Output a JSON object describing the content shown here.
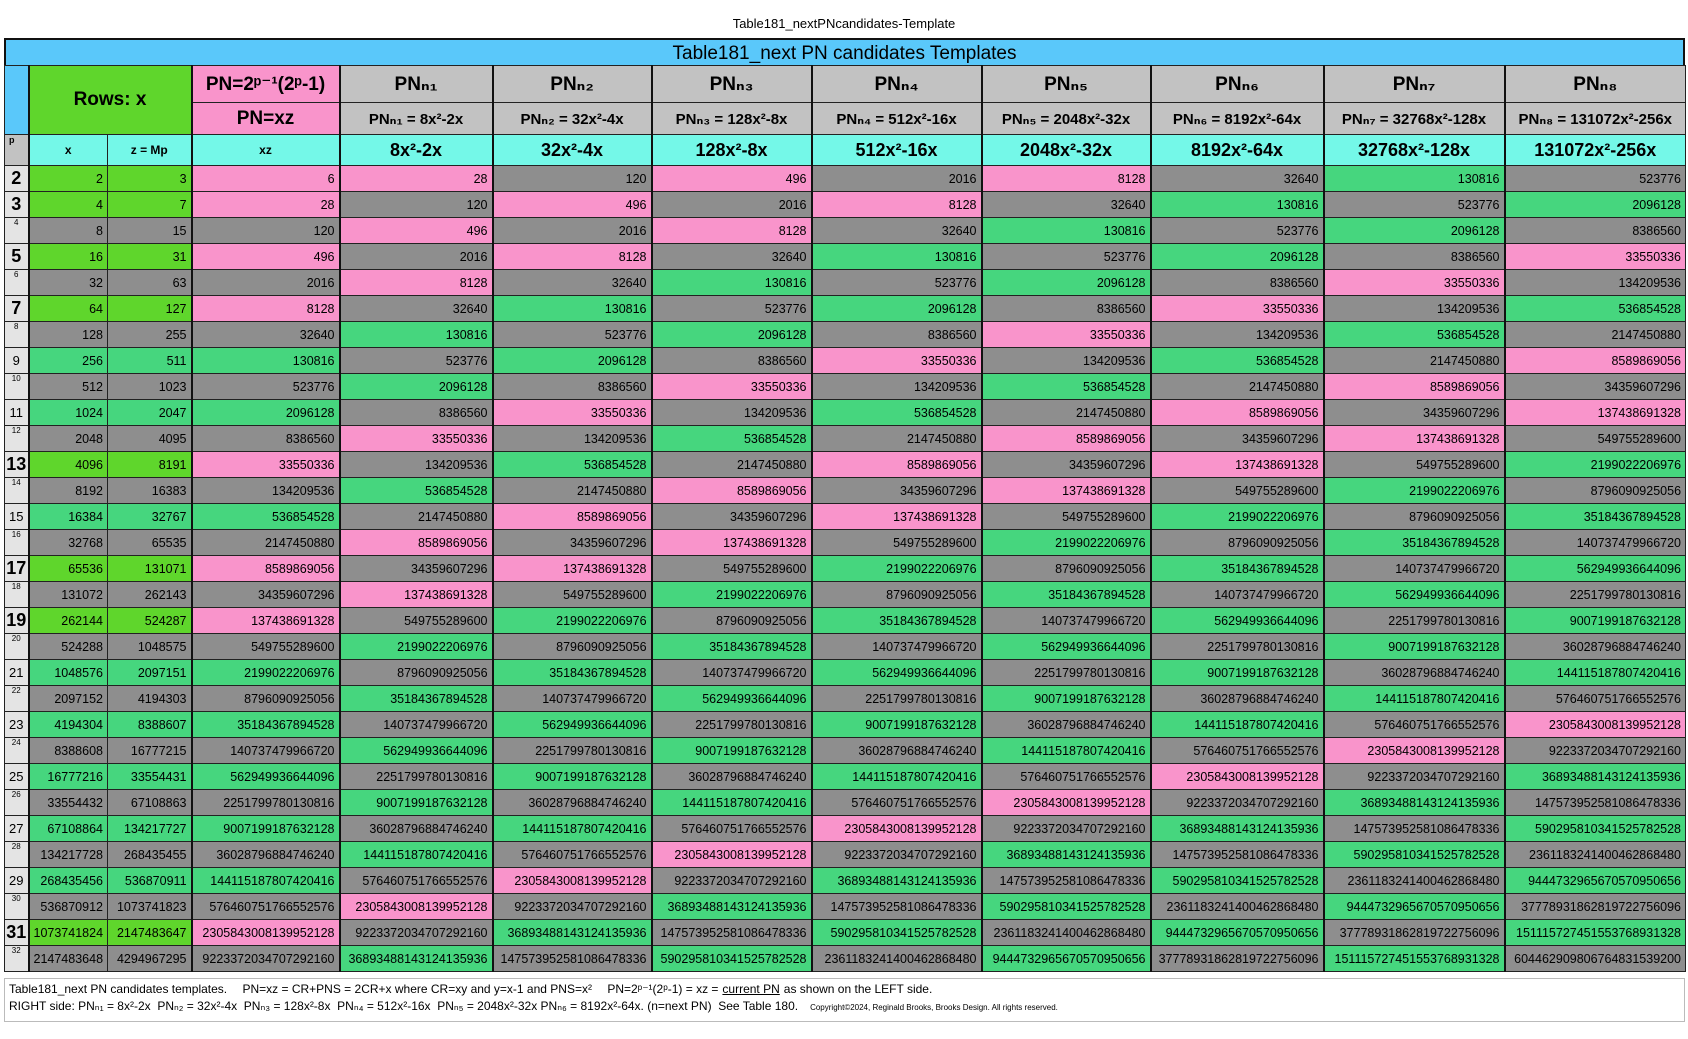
{
  "title": "Table181_nextPNcandidates-Template",
  "banner": "Table181_next PN candidates Templates",
  "header": {
    "rows_label": "Rows: x",
    "pn_formula": "PN=2ᵖ⁻¹(2ᵖ-1)",
    "pn_xz": "PN=xz",
    "p": "p",
    "x": "x",
    "z": "z = Mp",
    "xz": "xz",
    "columns": [
      {
        "name": "PNₙ₁",
        "formula": "PNₙ₁ = 8x²-2x",
        "expr": "8x²-2x"
      },
      {
        "name": "PNₙ₂",
        "formula": "PNₙ₂ = 32x²-4x",
        "expr": "32x²-4x"
      },
      {
        "name": "PNₙ₃",
        "formula": "PNₙ₃ = 128x²-8x",
        "expr": "128x²-8x"
      },
      {
        "name": "PNₙ₄",
        "formula": "PNₙ₄ = 512x²-16x",
        "expr": "512x²-16x"
      },
      {
        "name": "PNₙ₅",
        "formula": "PNₙ₅ = 2048x²-32x",
        "expr": "2048x²-32x"
      },
      {
        "name": "PNₙ₆",
        "formula": "PNₙ₆ = 8192x²-64x",
        "expr": "8192x²-64x"
      },
      {
        "name": "PNₙ₇",
        "formula": "PNₙ₇ = 32768x²-128x",
        "expr": "32768x²-128x"
      },
      {
        "name": "PNₙ₈",
        "formula": "PNₙ₈ = 131072x²-256x",
        "expr": "131072x²-256x"
      }
    ]
  },
  "table": {
    "rows": [
      {
        "p": "2",
        "cells": [
          "2",
          "3",
          "6",
          "28",
          "120",
          "496",
          "2016",
          "8128",
          "32640",
          "130816",
          "523776"
        ]
      },
      {
        "p": "3",
        "cells": [
          "4",
          "7",
          "28",
          "120",
          "496",
          "2016",
          "8128",
          "32640",
          "130816",
          "523776",
          "2096128"
        ]
      },
      {
        "p": "4",
        "cells": [
          "8",
          "15",
          "120",
          "496",
          "2016",
          "8128",
          "32640",
          "130816",
          "523776",
          "2096128",
          "8386560"
        ]
      },
      {
        "p": "5",
        "cells": [
          "16",
          "31",
          "496",
          "2016",
          "8128",
          "32640",
          "130816",
          "523776",
          "2096128",
          "8386560",
          "33550336"
        ]
      },
      {
        "p": "6",
        "cells": [
          "32",
          "63",
          "2016",
          "8128",
          "32640",
          "130816",
          "523776",
          "2096128",
          "8386560",
          "33550336",
          "134209536"
        ]
      },
      {
        "p": "7",
        "cells": [
          "64",
          "127",
          "8128",
          "32640",
          "130816",
          "523776",
          "2096128",
          "8386560",
          "33550336",
          "134209536",
          "536854528"
        ]
      },
      {
        "p": "8",
        "cells": [
          "128",
          "255",
          "32640",
          "130816",
          "523776",
          "2096128",
          "8386560",
          "33550336",
          "134209536",
          "536854528",
          "2147450880"
        ]
      },
      {
        "p": "9",
        "cells": [
          "256",
          "511",
          "130816",
          "523776",
          "2096128",
          "8386560",
          "33550336",
          "134209536",
          "536854528",
          "2147450880",
          "8589869056"
        ]
      },
      {
        "p": "10",
        "cells": [
          "512",
          "1023",
          "523776",
          "2096128",
          "8386560",
          "33550336",
          "134209536",
          "536854528",
          "2147450880",
          "8589869056",
          "34359607296"
        ]
      },
      {
        "p": "11",
        "cells": [
          "1024",
          "2047",
          "2096128",
          "8386560",
          "33550336",
          "134209536",
          "536854528",
          "2147450880",
          "8589869056",
          "34359607296",
          "137438691328"
        ]
      },
      {
        "p": "12",
        "cells": [
          "2048",
          "4095",
          "8386560",
          "33550336",
          "134209536",
          "536854528",
          "2147450880",
          "8589869056",
          "34359607296",
          "137438691328",
          "549755289600"
        ]
      },
      {
        "p": "13",
        "cells": [
          "4096",
          "8191",
          "33550336",
          "134209536",
          "536854528",
          "2147450880",
          "8589869056",
          "34359607296",
          "137438691328",
          "549755289600",
          "2199022206976"
        ]
      },
      {
        "p": "14",
        "cells": [
          "8192",
          "16383",
          "134209536",
          "536854528",
          "2147450880",
          "8589869056",
          "34359607296",
          "137438691328",
          "549755289600",
          "2199022206976",
          "8796090925056"
        ]
      },
      {
        "p": "15",
        "cells": [
          "16384",
          "32767",
          "536854528",
          "2147450880",
          "8589869056",
          "34359607296",
          "137438691328",
          "549755289600",
          "2199022206976",
          "8796090925056",
          "35184367894528"
        ]
      },
      {
        "p": "16",
        "cells": [
          "32768",
          "65535",
          "2147450880",
          "8589869056",
          "34359607296",
          "137438691328",
          "549755289600",
          "2199022206976",
          "8796090925056",
          "35184367894528",
          "140737479966720"
        ]
      },
      {
        "p": "17",
        "cells": [
          "65536",
          "131071",
          "8589869056",
          "34359607296",
          "137438691328",
          "549755289600",
          "2199022206976",
          "8796090925056",
          "35184367894528",
          "140737479966720",
          "562949936644096"
        ]
      },
      {
        "p": "18",
        "cells": [
          "131072",
          "262143",
          "34359607296",
          "137438691328",
          "549755289600",
          "2199022206976",
          "8796090925056",
          "35184367894528",
          "140737479966720",
          "562949936644096",
          "2251799780130816"
        ]
      },
      {
        "p": "19",
        "cells": [
          "262144",
          "524287",
          "137438691328",
          "549755289600",
          "2199022206976",
          "8796090925056",
          "35184367894528",
          "140737479966720",
          "562949936644096",
          "2251799780130816",
          "9007199187632128"
        ]
      },
      {
        "p": "20",
        "cells": [
          "524288",
          "1048575",
          "549755289600",
          "2199022206976",
          "8796090925056",
          "35184367894528",
          "140737479966720",
          "562949936644096",
          "2251799780130816",
          "9007199187632128",
          "36028796884746240"
        ]
      },
      {
        "p": "21",
        "cells": [
          "1048576",
          "2097151",
          "2199022206976",
          "8796090925056",
          "35184367894528",
          "140737479966720",
          "562949936644096",
          "2251799780130816",
          "9007199187632128",
          "36028796884746240",
          "144115187807420416"
        ]
      },
      {
        "p": "22",
        "cells": [
          "2097152",
          "4194303",
          "8796090925056",
          "35184367894528",
          "140737479966720",
          "562949936644096",
          "2251799780130816",
          "9007199187632128",
          "36028796884746240",
          "144115187807420416",
          "576460751766552576"
        ]
      },
      {
        "p": "23",
        "cells": [
          "4194304",
          "8388607",
          "35184367894528",
          "140737479966720",
          "562949936644096",
          "2251799780130816",
          "9007199187632128",
          "36028796884746240",
          "144115187807420416",
          "576460751766552576",
          "2305843008139952128"
        ]
      },
      {
        "p": "24",
        "cells": [
          "8388608",
          "16777215",
          "140737479966720",
          "562949936644096",
          "2251799780130816",
          "9007199187632128",
          "36028796884746240",
          "144115187807420416",
          "576460751766552576",
          "2305843008139952128",
          "9223372034707292160"
        ]
      },
      {
        "p": "25",
        "cells": [
          "16777216",
          "33554431",
          "562949936644096",
          "2251799780130816",
          "9007199187632128",
          "36028796884746240",
          "144115187807420416",
          "576460751766552576",
          "2305843008139952128",
          "9223372034707292160",
          "36893488143124135936"
        ]
      },
      {
        "p": "26",
        "cells": [
          "33554432",
          "67108863",
          "2251799780130816",
          "9007199187632128",
          "36028796884746240",
          "144115187807420416",
          "576460751766552576",
          "2305843008139952128",
          "9223372034707292160",
          "36893488143124135936",
          "147573952581086478336"
        ]
      },
      {
        "p": "27",
        "cells": [
          "67108864",
          "134217727",
          "9007199187632128",
          "36028796884746240",
          "144115187807420416",
          "576460751766552576",
          "2305843008139952128",
          "9223372034707292160",
          "36893488143124135936",
          "147573952581086478336",
          "590295810341525782528"
        ]
      },
      {
        "p": "28",
        "cells": [
          "134217728",
          "268435455",
          "36028796884746240",
          "144115187807420416",
          "576460751766552576",
          "2305843008139952128",
          "9223372034707292160",
          "36893488143124135936",
          "147573952581086478336",
          "590295810341525782528",
          "2361183241400462868480"
        ]
      },
      {
        "p": "29",
        "cells": [
          "268435456",
          "536870911",
          "144115187807420416",
          "576460751766552576",
          "2305843008139952128",
          "9223372034707292160",
          "36893488143124135936",
          "147573952581086478336",
          "590295810341525782528",
          "2361183241400462868480",
          "9444732965670570950656"
        ]
      },
      {
        "p": "30",
        "cells": [
          "536870912",
          "1073741823",
          "576460751766552576",
          "2305843008139952128",
          "9223372034707292160",
          "36893488143124135936",
          "147573952581086478336",
          "590295810341525782528",
          "2361183241400462868480",
          "9444732965670570950656",
          "37778931862819722756096"
        ]
      },
      {
        "p": "31",
        "cells": [
          "1073741824",
          "2147483647",
          "2305843008139952128",
          "9223372034707292160",
          "36893488143124135936",
          "147573952581086478336",
          "590295810341525782528",
          "2361183241400462868480",
          "9444732965670570950656",
          "37778931862819722756096",
          "151115727451553768931328"
        ]
      },
      {
        "p": "32",
        "cells": [
          "2147483648",
          "4294967295",
          "9223372034707292160",
          "36893488143124135936",
          "147573952581086478336",
          "590295810341525782528",
          "2361183241400462868480",
          "9444732965670570950656",
          "37778931862819722756096",
          "151115727451553768931328",
          "604462909806764831539200"
        ]
      }
    ]
  },
  "footer": {
    "line1": [
      "Table181_next PN candidates templates.",
      "PN=xz = CR+PNS = 2CR+x where CR=xy and y=x-1 and PNS=x²",
      "PN=2ᵖ⁻¹(2ᵖ-1) = xz =",
      "current PN",
      "as shown on the LEFT side."
    ],
    "line2": "RIGHT side: PNₙ₁ = 8x²-2x  PNₙ₂ = 32x²-4x  PNₙ₃ = 128x²-8x  PNₙ₄ = 512x²-16x  PNₙ₅ = 2048x²-32x PNₙ₆ = 8192x²-64x. (n=next PN)  See Table 180.",
    "copyright": "Copyright©2024, Reginald Brooks, Brooks Design. All rights reserved."
  }
}
